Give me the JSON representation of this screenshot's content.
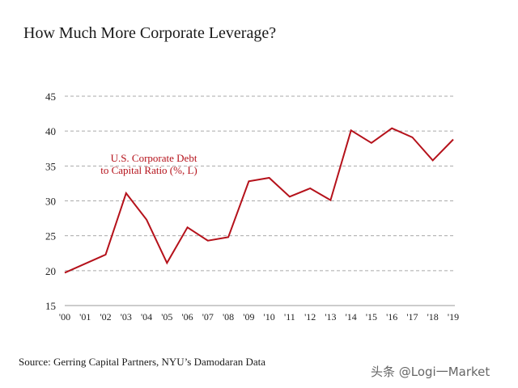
{
  "chart_data": {
    "type": "line",
    "title": "How Much More Corporate Leverage?",
    "xlabel": "",
    "ylabel": "",
    "ylim": [
      15,
      45
    ],
    "yticks": [
      15,
      20,
      25,
      30,
      35,
      40,
      45
    ],
    "grid": true,
    "categories": [
      "'00",
      "'01",
      "'02",
      "'03",
      "'04",
      "'05",
      "'06",
      "'07",
      "'08",
      "'09",
      "'10",
      "'11",
      "'12",
      "'13",
      "'14",
      "'15",
      "'16",
      "'17",
      "'18",
      "'19"
    ],
    "series": [
      {
        "name": "U.S. Corporate Debt to Capital Ratio (%, L)",
        "color": "#b5121b",
        "values": [
          19.7,
          21.0,
          22.3,
          31.1,
          27.3,
          21.1,
          26.2,
          24.3,
          24.8,
          32.8,
          33.3,
          30.6,
          31.8,
          30.1,
          40.1,
          38.3,
          40.4,
          39.1,
          35.8,
          38.8
        ]
      }
    ],
    "annotation": {
      "line1": "U.S. Corporate Debt",
      "line2": "to Capital Ratio (%, L)"
    }
  },
  "source": "Source: Gerring Capital Partners, NYU’s Damodaran Data",
  "watermark": "头条 @Logi一Market"
}
